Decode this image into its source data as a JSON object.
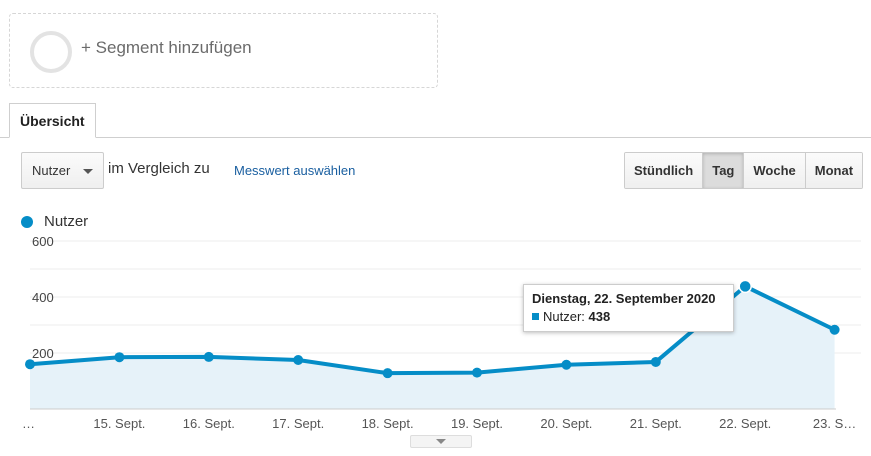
{
  "segment": {
    "add_label": "+ Segment hinzufügen"
  },
  "tabs": [
    {
      "label": "Übersicht"
    }
  ],
  "controls": {
    "metric_select": "Nutzer",
    "compare_text": "im Vergleich zu",
    "compare_link": "Messwert auswählen",
    "granularity": [
      "Stündlich",
      "Tag",
      "Woche",
      "Monat"
    ],
    "granularity_active": "Tag"
  },
  "legend": {
    "label": "Nutzer",
    "color": "#058dc7"
  },
  "tooltip": {
    "date": "Dienstag, 22. September 2020",
    "metric": "Nutzer:",
    "value": "438"
  },
  "chart_data": {
    "type": "area",
    "x": [
      "…",
      "15. Sept.",
      "16. Sept.",
      "17. Sept.",
      "18. Sept.",
      "19. Sept.",
      "20. Sept.",
      "21. Sept.",
      "22. Sept.",
      "23. S…"
    ],
    "series": [
      {
        "name": "Nutzer",
        "values": [
          160,
          185,
          186,
          175,
          128,
          130,
          158,
          168,
          438,
          283
        ]
      }
    ],
    "yticks": [
      200,
      400,
      600
    ],
    "ylim": [
      0,
      600
    ],
    "grid": true,
    "line_color": "#058dc7",
    "fill_color": "#e6f2f9"
  }
}
